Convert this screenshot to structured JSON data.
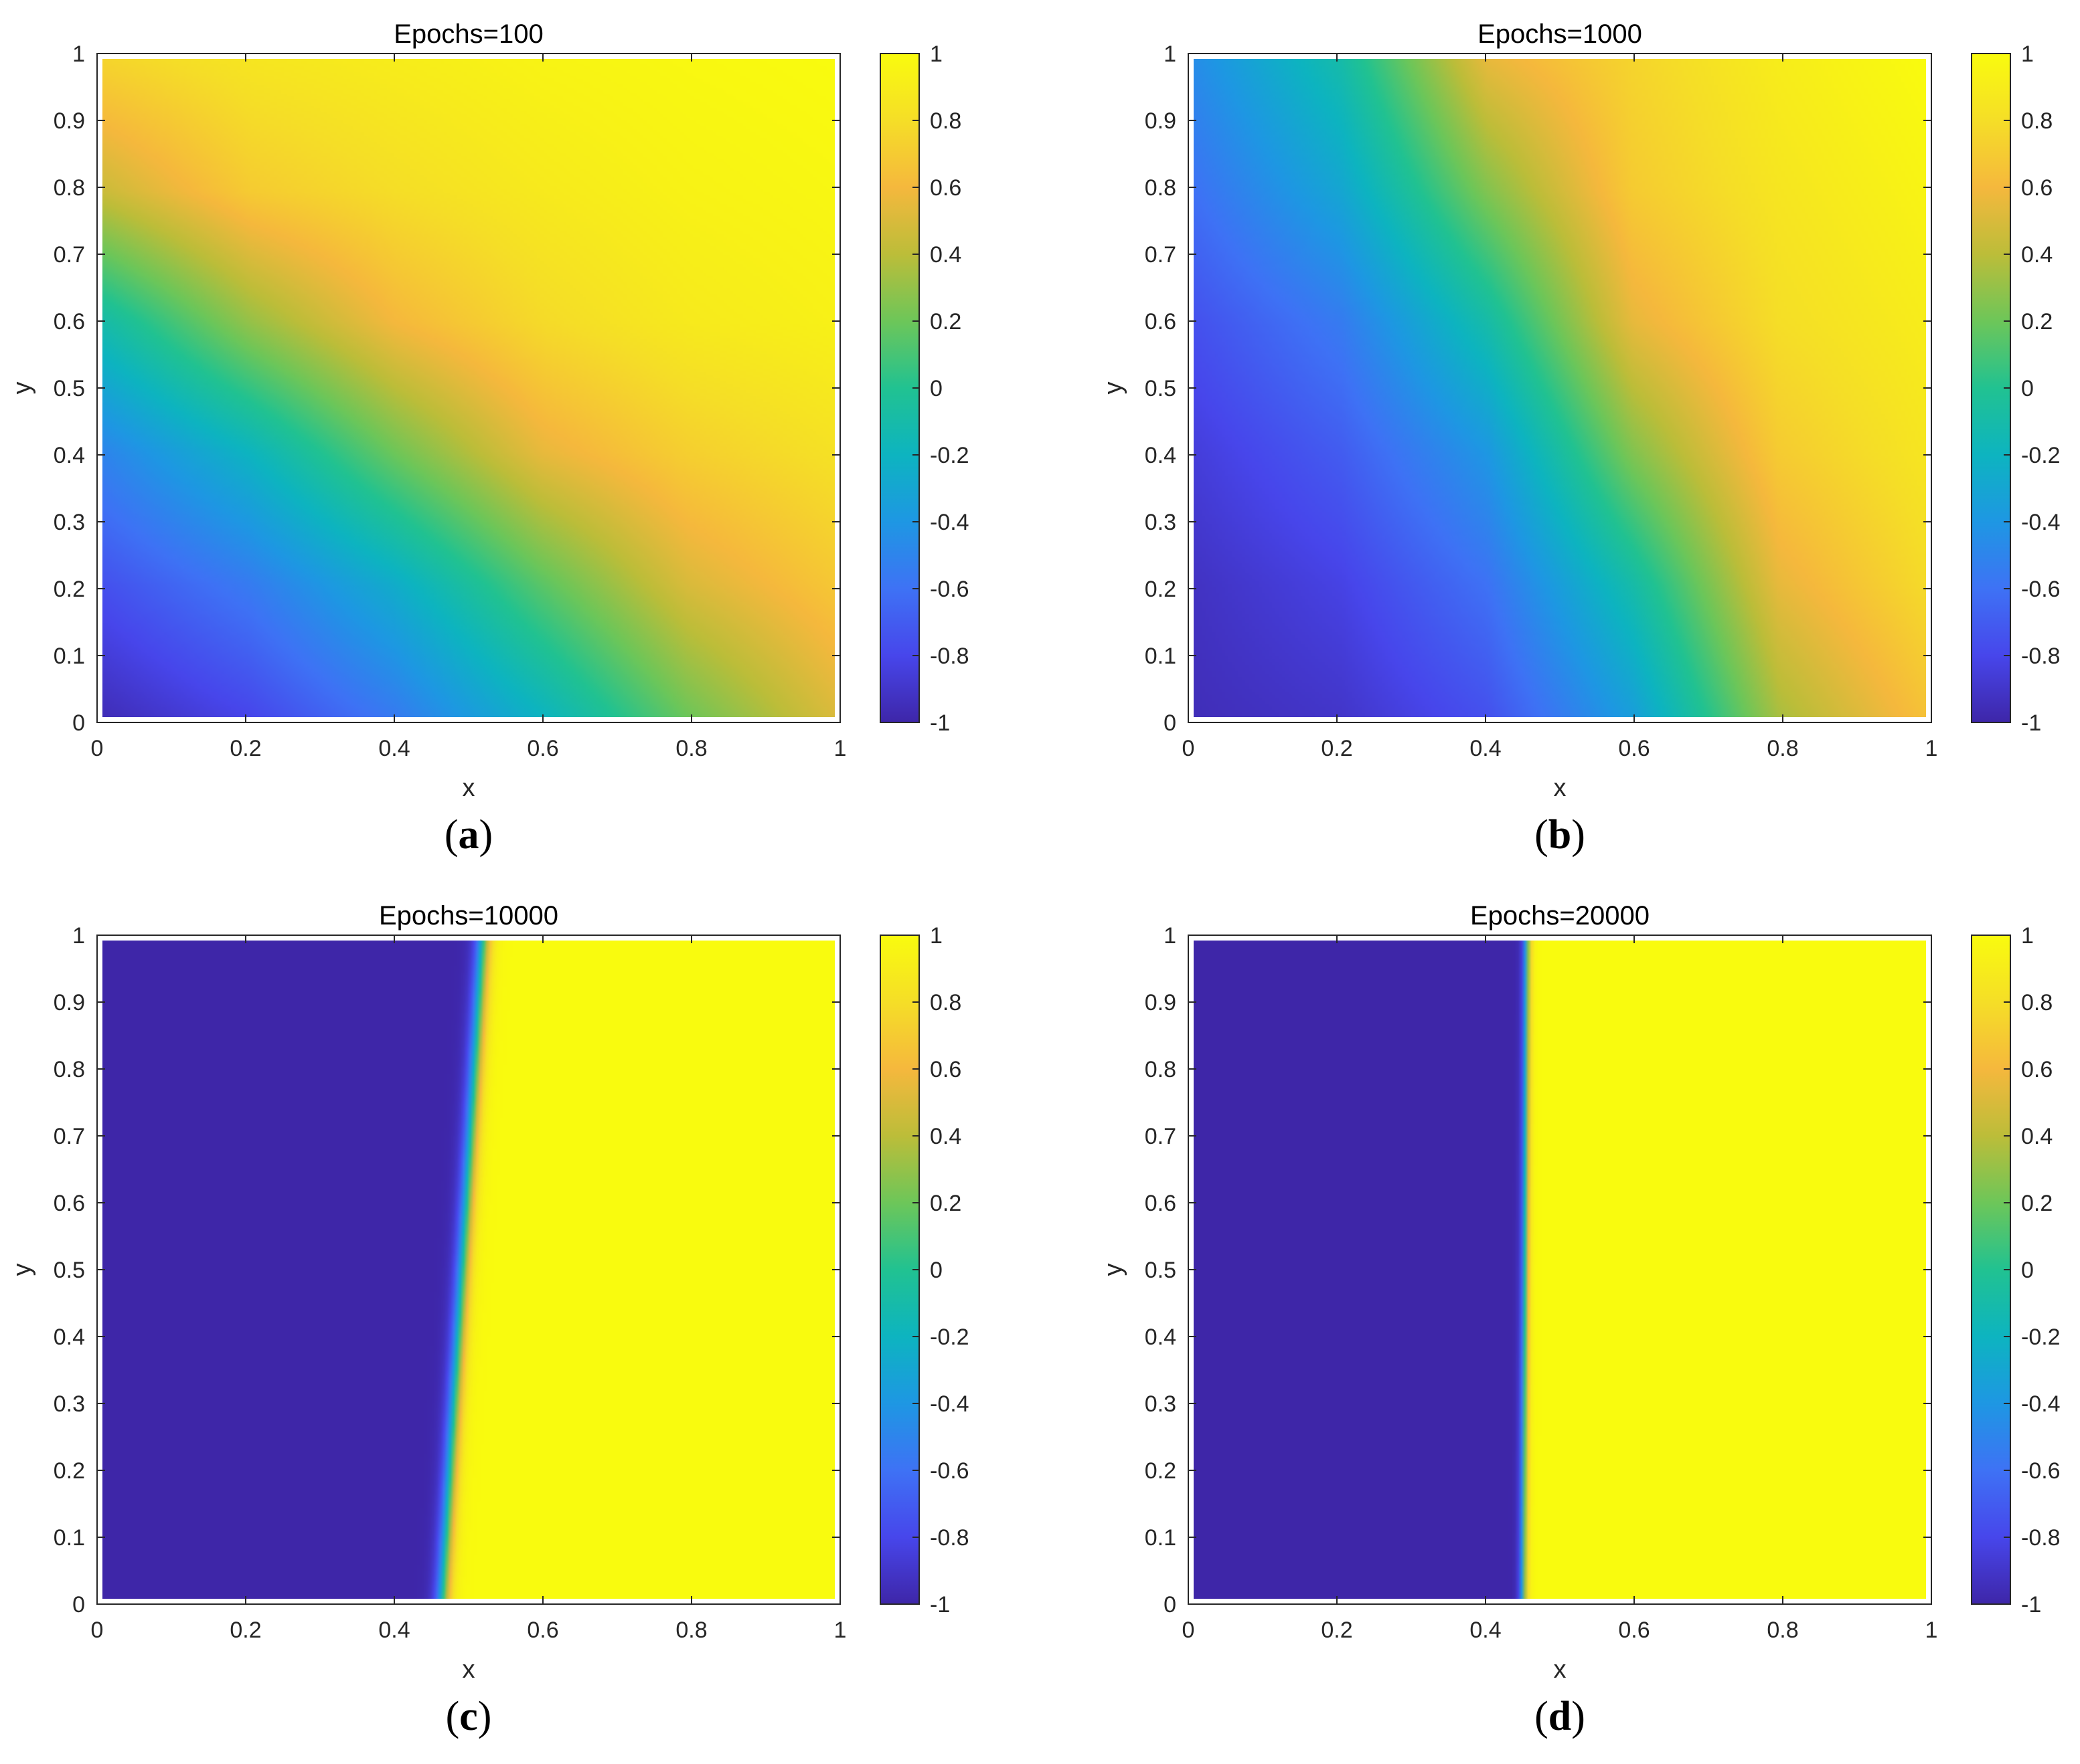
{
  "chart_data": [
    {
      "type": "heatmap",
      "title": "Epochs=100",
      "caption_letter": "a",
      "xlabel": "x",
      "ylabel": "y",
      "xlim": [
        0,
        1
      ],
      "ylim": [
        0,
        1
      ],
      "x_ticks": [
        "0",
        "0.2",
        "0.4",
        "0.6",
        "0.8",
        "1"
      ],
      "y_ticks": [
        "0",
        "0.1",
        "0.2",
        "0.3",
        "0.4",
        "0.5",
        "0.6",
        "0.7",
        "0.8",
        "0.9",
        "1"
      ],
      "colorbar_ticks": [
        "-1",
        "-0.8",
        "-0.6",
        "-0.4",
        "-0.2",
        "0",
        "0.2",
        "0.4",
        "0.6",
        "0.8",
        "1"
      ],
      "colorbar_range": [
        -1,
        1
      ],
      "colormap": "parula",
      "field": {
        "description_of_values": "u(x,y) sampled on grid, rows from y=1 (top) to y=0 (bottom), columns x=0..1 step 0.2",
        "x": [
          0,
          0.2,
          0.4,
          0.6,
          0.8,
          1.0
        ],
        "y": [
          1.0,
          0.8,
          0.6,
          0.4,
          0.2,
          0.0
        ],
        "values": [
          [
            0.75,
            0.85,
            0.9,
            0.95,
            0.98,
            1.0
          ],
          [
            0.45,
            0.7,
            0.8,
            0.88,
            0.94,
            0.97
          ],
          [
            -0.1,
            0.3,
            0.6,
            0.78,
            0.88,
            0.93
          ],
          [
            -0.5,
            -0.2,
            0.2,
            0.55,
            0.72,
            0.82
          ],
          [
            -0.75,
            -0.55,
            -0.25,
            0.15,
            0.5,
            0.68
          ],
          [
            -0.95,
            -0.8,
            -0.55,
            -0.2,
            0.2,
            0.5
          ]
        ]
      }
    },
    {
      "type": "heatmap",
      "title": "Epochs=1000",
      "caption_letter": "b",
      "xlabel": "x",
      "ylabel": "y",
      "xlim": [
        0,
        1
      ],
      "ylim": [
        0,
        1
      ],
      "x_ticks": [
        "0",
        "0.2",
        "0.4",
        "0.6",
        "0.8",
        "1"
      ],
      "y_ticks": [
        "0",
        "0.1",
        "0.2",
        "0.3",
        "0.4",
        "0.5",
        "0.6",
        "0.7",
        "0.8",
        "0.9",
        "1"
      ],
      "colorbar_ticks": [
        "-1",
        "-0.8",
        "-0.6",
        "-0.4",
        "-0.2",
        "0",
        "0.2",
        "0.4",
        "0.6",
        "0.8",
        "1"
      ],
      "colorbar_range": [
        -1,
        1
      ],
      "colormap": "parula",
      "field": {
        "description_of_values": "u(x,y) sampled on grid, rows from y=1 (top) to y=0 (bottom), columns x=0..1 step 0.2",
        "x": [
          0,
          0.2,
          0.4,
          0.6,
          0.8,
          1.0
        ],
        "y": [
          1.0,
          0.8,
          0.6,
          0.4,
          0.2,
          0.0
        ],
        "values": [
          [
            -0.45,
            -0.1,
            0.55,
            0.75,
            0.9,
            1.0
          ],
          [
            -0.6,
            -0.3,
            0.25,
            0.7,
            0.85,
            0.95
          ],
          [
            -0.75,
            -0.55,
            -0.1,
            0.55,
            0.8,
            0.9
          ],
          [
            -0.85,
            -0.7,
            -0.4,
            0.25,
            0.7,
            0.85
          ],
          [
            -0.92,
            -0.82,
            -0.6,
            -0.1,
            0.55,
            0.78
          ],
          [
            -0.95,
            -0.9,
            -0.75,
            -0.35,
            0.35,
            0.65
          ]
        ]
      }
    },
    {
      "type": "heatmap",
      "title": "Epochs=10000",
      "caption_letter": "c",
      "xlabel": "x",
      "ylabel": "y",
      "xlim": [
        0,
        1
      ],
      "ylim": [
        0,
        1
      ],
      "x_ticks": [
        "0",
        "0.2",
        "0.4",
        "0.6",
        "0.8",
        "1"
      ],
      "y_ticks": [
        "0",
        "0.1",
        "0.2",
        "0.3",
        "0.4",
        "0.5",
        "0.6",
        "0.7",
        "0.8",
        "0.9",
        "1"
      ],
      "colorbar_ticks": [
        "-1",
        "-0.8",
        "-0.6",
        "-0.4",
        "-0.2",
        "0",
        "0.2",
        "0.4",
        "0.6",
        "0.8",
        "1"
      ],
      "colorbar_range": [
        -1,
        1
      ],
      "colormap": "parula",
      "field": {
        "description_of_values": "sharp interface: u≈-1 left of front, u≈1 right of front; front x-position at y=0 and y=1",
        "front_x_at_y0": 0.465,
        "front_x_at_y1": 0.52,
        "left_value": -1,
        "right_value": 1
      }
    },
    {
      "type": "heatmap",
      "title": "Epochs=20000",
      "caption_letter": "d",
      "xlabel": "x",
      "ylabel": "y",
      "xlim": [
        0,
        1
      ],
      "ylim": [
        0,
        1
      ],
      "x_ticks": [
        "0",
        "0.2",
        "0.4",
        "0.6",
        "0.8",
        "1"
      ],
      "y_ticks": [
        "0",
        "0.1",
        "0.2",
        "0.3",
        "0.4",
        "0.5",
        "0.6",
        "0.7",
        "0.8",
        "0.9",
        "1"
      ],
      "colorbar_ticks": [
        "-1",
        "-0.8",
        "-0.6",
        "-0.4",
        "-0.2",
        "0",
        "0.2",
        "0.4",
        "0.6",
        "0.8",
        "1"
      ],
      "colorbar_range": [
        -1,
        1
      ],
      "colormap": "parula",
      "field": {
        "description_of_values": "sharp vertical interface: u≈-1 left of front, u≈1 right of front",
        "front_x_at_y0": 0.45,
        "front_x_at_y1": 0.455,
        "left_value": -1,
        "right_value": 1
      }
    }
  ],
  "colors": {
    "parula_stops": [
      "#3e26a8",
      "#4746eb",
      "#3e72f5",
      "#1e97e3",
      "#0db4c0",
      "#21c291",
      "#6dc659",
      "#bcbd39",
      "#f5b83d",
      "#f5de27",
      "#f9fb0e"
    ],
    "axis": "#262626",
    "grid_box": "#d9d9d9"
  }
}
